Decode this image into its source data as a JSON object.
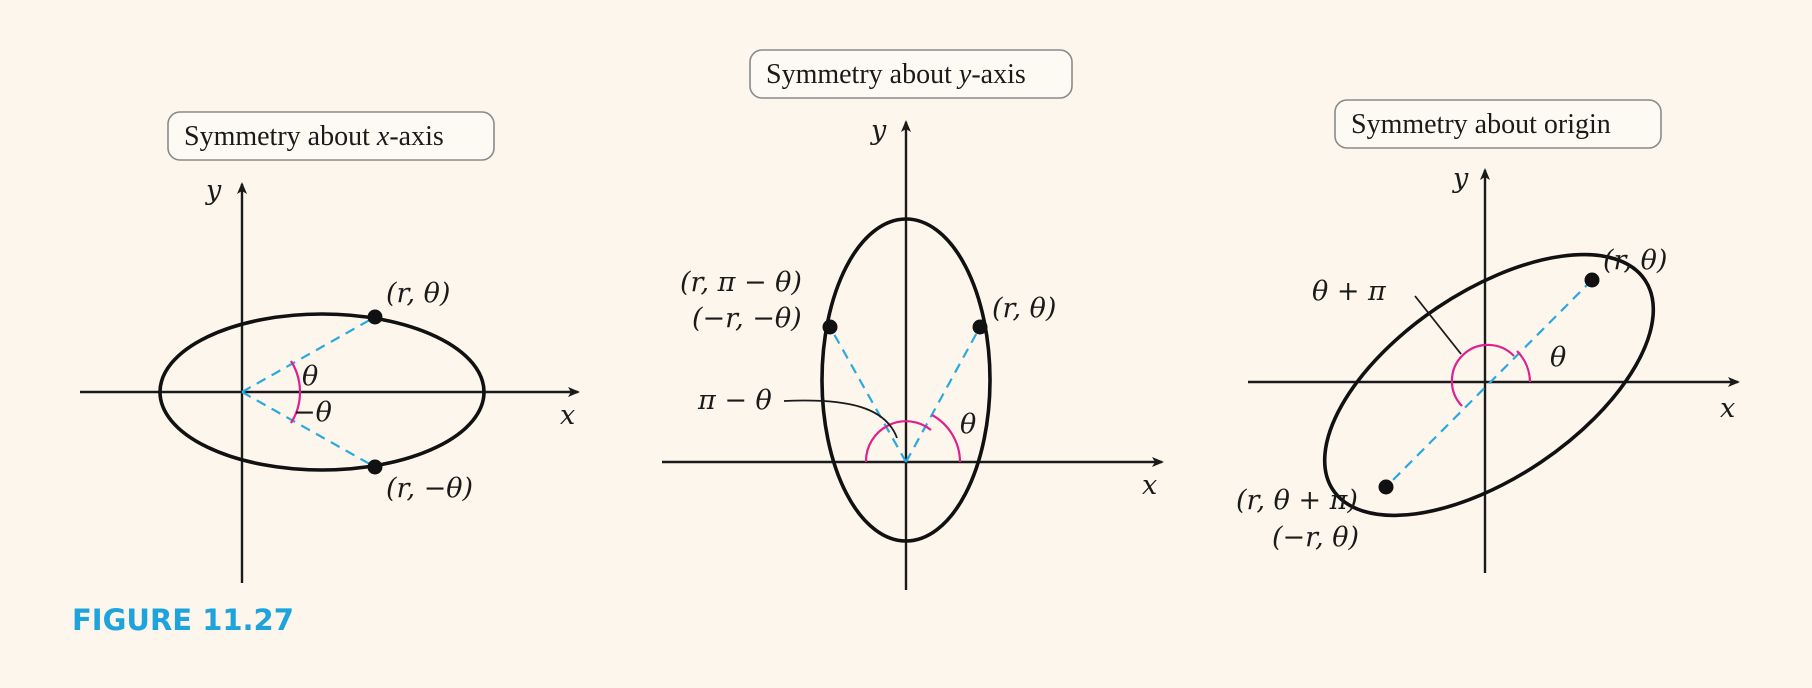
{
  "colors": {
    "background": "#fdf6ec",
    "figure_label": "#1ea3dc",
    "dashed_line": "#2aa9e0",
    "angle_arc": "#e0208c"
  },
  "figure_label": "FIGURE 11.27",
  "panels": [
    {
      "title_text": "Symmetry about ",
      "title_var": "x",
      "title_tail": "-axis",
      "axis_x": "x",
      "axis_y": "y",
      "point_1": "(r, θ)",
      "point_2": "(r, −θ)",
      "angle_1": "θ",
      "angle_2": "−θ"
    },
    {
      "title_text": "Symmetry about ",
      "title_var": "y",
      "title_tail": "-axis",
      "axis_x": "x",
      "axis_y": "y",
      "point_1": "(r, θ)",
      "point_2_line1": "(r, π − θ)",
      "point_2_line2": "(−r, −θ)",
      "angle_1": "θ",
      "angle_2": "π − θ"
    },
    {
      "title_text": "Symmetry about origin",
      "axis_x": "x",
      "axis_y": "y",
      "point_1": "(r, θ)",
      "point_2_line1": "(r, θ + π)",
      "point_2_line2": "(−r, θ)",
      "angle_1": "θ",
      "angle_2": "θ + π"
    }
  ]
}
